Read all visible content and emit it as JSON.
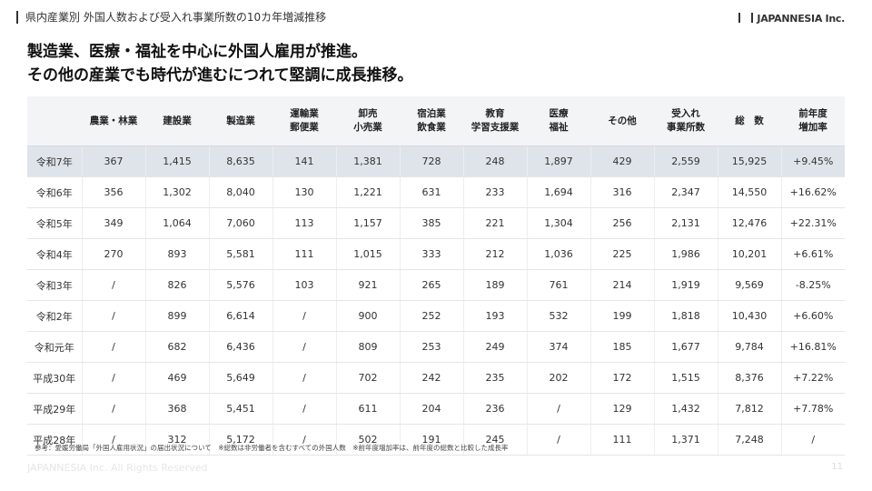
{
  "header": {
    "title": "県内産業別 外国人数および受入れ事業所数の10カ年増減推移",
    "logo": "JAPANNESIA Inc."
  },
  "headline": [
    "製造業、医療・福祉を中心に外国人雇用が推進。",
    "その他の産業でも時代が進むにつれて堅調に成長推移。"
  ],
  "table": {
    "columns": [
      [
        ""
      ],
      [
        "農業・林業"
      ],
      [
        "建設業"
      ],
      [
        "製造業"
      ],
      [
        "運輸業",
        "郵便業"
      ],
      [
        "卸売",
        "小売業"
      ],
      [
        "宿泊業",
        "飲食業"
      ],
      [
        "教育",
        "学習支援業"
      ],
      [
        "医療",
        "福祉"
      ],
      [
        "その他"
      ],
      [
        "受入れ",
        "事業所数"
      ],
      [
        "総　数"
      ],
      [
        "前年度",
        "増加率"
      ]
    ],
    "rows": [
      [
        "令和7年",
        "367",
        "1,415",
        "8,635",
        "141",
        "1,381",
        "728",
        "248",
        "1,897",
        "429",
        "2,559",
        "15,925",
        "+9.45%"
      ],
      [
        "令和6年",
        "356",
        "1,302",
        "8,040",
        "130",
        "1,221",
        "631",
        "233",
        "1,694",
        "316",
        "2,347",
        "14,550",
        "+16.62%"
      ],
      [
        "令和5年",
        "349",
        "1,064",
        "7,060",
        "113",
        "1,157",
        "385",
        "221",
        "1,304",
        "256",
        "2,131",
        "12,476",
        "+22.31%"
      ],
      [
        "令和4年",
        "270",
        "893",
        "5,581",
        "111",
        "1,015",
        "333",
        "212",
        "1,036",
        "225",
        "1,986",
        "10,201",
        "+6.61%"
      ],
      [
        "令和3年",
        "/",
        "826",
        "5,576",
        "103",
        "921",
        "265",
        "189",
        "761",
        "214",
        "1,919",
        "9,569",
        "-8.25%"
      ],
      [
        "令和2年",
        "/",
        "899",
        "6,614",
        "/",
        "900",
        "252",
        "193",
        "532",
        "199",
        "1,818",
        "10,430",
        "+6.60%"
      ],
      [
        "令和元年",
        "/",
        "682",
        "6,436",
        "/",
        "809",
        "253",
        "249",
        "374",
        "185",
        "1,677",
        "9,784",
        "+16.81%"
      ],
      [
        "平成30年",
        "/",
        "469",
        "5,649",
        "/",
        "702",
        "242",
        "235",
        "202",
        "172",
        "1,515",
        "8,376",
        "+7.22%"
      ],
      [
        "平成29年",
        "/",
        "368",
        "5,451",
        "/",
        "611",
        "204",
        "236",
        "/",
        "129",
        "1,432",
        "7,812",
        "+7.78%"
      ],
      [
        "平成28年",
        "/",
        "312",
        "5,172",
        "/",
        "502",
        "191",
        "245",
        "/",
        "111",
        "1,371",
        "7,248",
        "/"
      ]
    ]
  },
  "footer": {
    "note": "参考：愛媛労働局「外国人雇用状況」の届出状況について　※総数は非労働者を含むすべての外国人数　※前年度増加率は、前年度の総数と比較した成長率",
    "copyright": "JAPANNESIA Inc. All Rights Reserved",
    "page": "11"
  }
}
